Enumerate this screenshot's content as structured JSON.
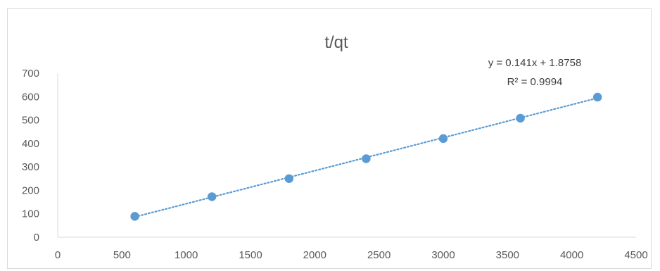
{
  "chart_data": {
    "type": "scatter",
    "title": "t/qt",
    "xlabel": "",
    "ylabel": "",
    "xlim": [
      0,
      4500
    ],
    "ylim": [
      0,
      700
    ],
    "x_ticks": [
      0,
      500,
      1000,
      1500,
      2000,
      2500,
      3000,
      3500,
      4000,
      4500
    ],
    "y_ticks": [
      0,
      100,
      200,
      300,
      400,
      500,
      600,
      700
    ],
    "grid": false,
    "legend": "none",
    "series": [
      {
        "x": [
          600,
          1200,
          1800,
          2400,
          3000,
          3600,
          4200
        ],
        "y": [
          89,
          173,
          250,
          335,
          421,
          508,
          598
        ],
        "color": "#5b9bd5"
      }
    ],
    "trendline": {
      "type": "linear",
      "slope": 0.141,
      "intercept": 1.8758,
      "style": "dotted",
      "color": "#5b9bd5",
      "equation_label": "y = 0.141x + 1.8758",
      "r2_label": "R² = 0.9994"
    }
  }
}
